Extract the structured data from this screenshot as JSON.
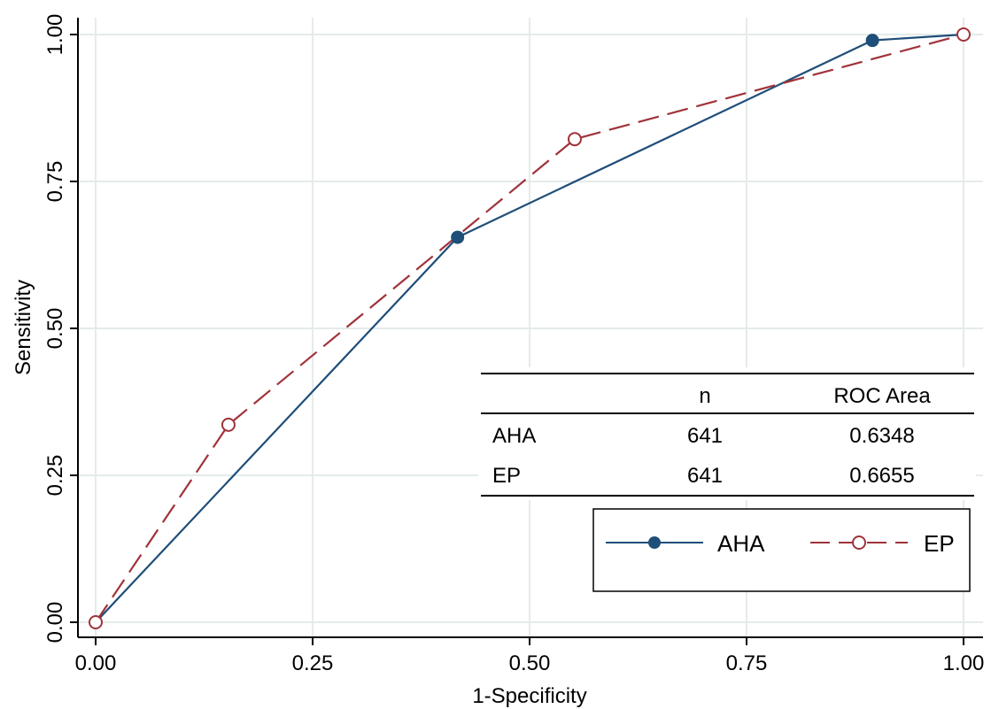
{
  "chart_data": {
    "type": "line",
    "xlabel": "1-Specificity",
    "ylabel": "Sensitivity",
    "xlim": [
      0,
      1
    ],
    "ylim": [
      0,
      1
    ],
    "x_ticks": [
      "0.00",
      "0.25",
      "0.50",
      "0.75",
      "1.00"
    ],
    "y_ticks": [
      "0.00",
      "0.25",
      "0.50",
      "0.75",
      "1.00"
    ],
    "grid": true,
    "series": [
      {
        "name": "AHA",
        "color": "#1f4e79",
        "line_style": "solid",
        "marker": "filled-circle",
        "x": [
          0.0,
          0.417,
          0.895,
          1.0
        ],
        "y": [
          0.0,
          0.655,
          0.99,
          1.0
        ]
      },
      {
        "name": "EP",
        "color": "#a0333a",
        "line_style": "dashed",
        "marker": "hollow-circle",
        "x": [
          0.0,
          0.153,
          0.552,
          1.0
        ],
        "y": [
          0.0,
          0.336,
          0.822,
          1.0
        ]
      }
    ],
    "table": {
      "headers": [
        "",
        "n",
        "ROC Area"
      ],
      "rows": [
        [
          "AHA",
          "641",
          "0.6348"
        ],
        [
          "EP",
          "641",
          "0.6655"
        ]
      ]
    },
    "legend_position": "bottom-right"
  }
}
